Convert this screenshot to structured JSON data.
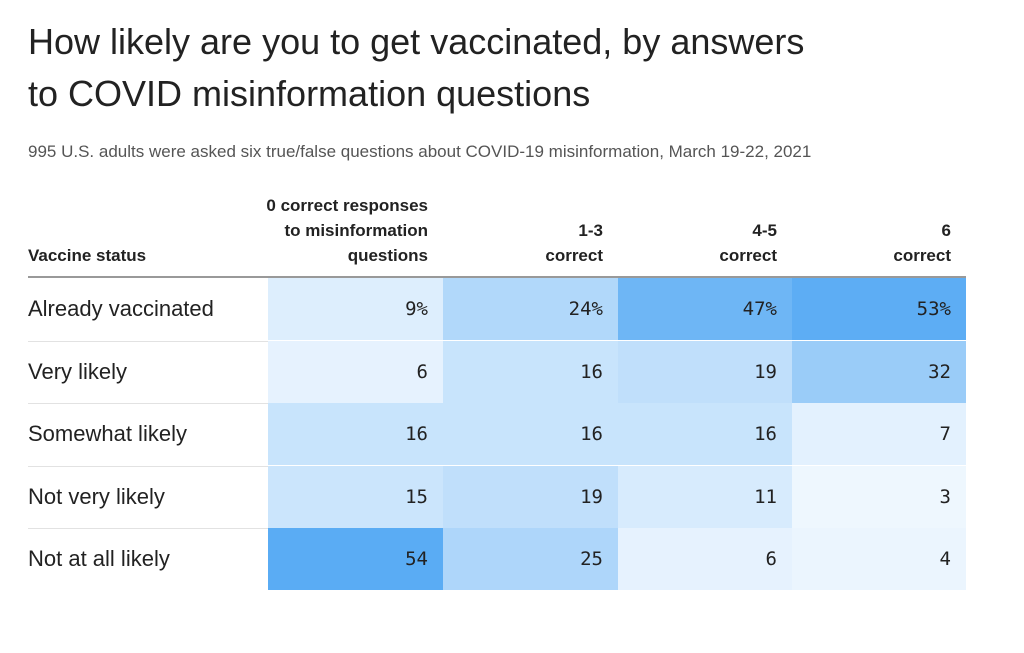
{
  "title_lines": [
    "How likely are you to get vaccinated, by answers",
    "to COVID misinformation questions"
  ],
  "subtitle": "995 U.S. adults were asked six true/false questions about COVID-19 misinformation, March 19-22, 2021",
  "chart_data": {
    "type": "heatmap",
    "title": "How likely are you to get vaccinated, by answers to COVID misinformation questions",
    "subtitle": "995 U.S. adults were asked six true/false questions about COVID-19 misinformation, March 19-22, 2021",
    "row_header": "Vaccine status",
    "columns": [
      {
        "lines": [
          "0 correct responses",
          "to misinformation",
          "questions"
        ]
      },
      {
        "lines": [
          "1-3",
          "correct"
        ]
      },
      {
        "lines": [
          "4-5",
          "correct"
        ]
      },
      {
        "lines": [
          "6",
          "correct"
        ]
      }
    ],
    "rows": [
      {
        "label": "Already vaccinated",
        "values": [
          9,
          24,
          47,
          53
        ],
        "display": [
          "9%",
          "24%",
          "47%",
          "53%"
        ]
      },
      {
        "label": "Very likely",
        "values": [
          6,
          16,
          19,
          32
        ],
        "display": [
          "6",
          "16",
          "19",
          "32"
        ]
      },
      {
        "label": "Somewhat likely",
        "values": [
          16,
          16,
          16,
          7
        ],
        "display": [
          "16",
          "16",
          "16",
          "7"
        ]
      },
      {
        "label": "Not very likely",
        "values": [
          15,
          19,
          11,
          3
        ],
        "display": [
          "15",
          "19",
          "11",
          "3"
        ]
      },
      {
        "label": "Not at all likely",
        "values": [
          54,
          25,
          6,
          4
        ],
        "display": [
          "54",
          "25",
          "6",
          "4"
        ]
      }
    ],
    "color_scale": {
      "low": "#f7fbff",
      "high": "#5aacf4",
      "min": 0,
      "max": 54
    }
  }
}
